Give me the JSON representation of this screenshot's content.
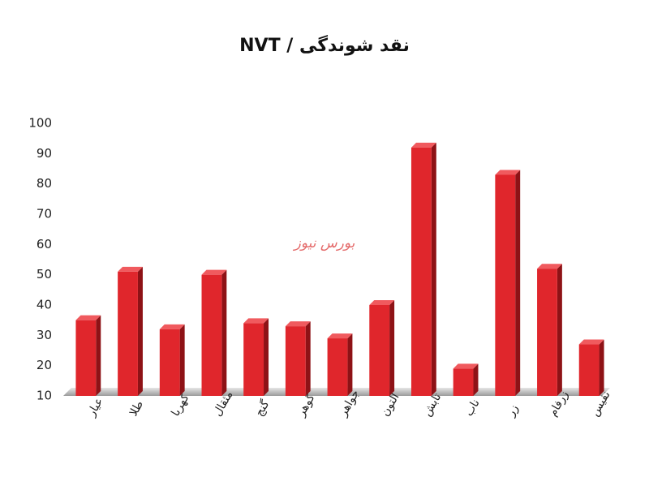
{
  "chart_data": {
    "type": "bar",
    "title": "نقد شوندگی / NVT",
    "annotation": "بورس نیوز",
    "categories": [
      "عیار",
      "طلا",
      "کهربا",
      "مثقال",
      "گنج",
      "گوهر",
      "جواهر",
      "آلتون",
      "تابش",
      "ناب",
      "زر",
      "زرفام",
      "نفیس"
    ],
    "values": [
      35,
      51,
      32,
      50,
      34,
      33,
      29,
      40,
      92,
      19,
      83,
      52,
      27
    ],
    "color": "#e0262c",
    "ylim": [
      10,
      100
    ],
    "yticks": [
      10,
      20,
      30,
      40,
      50,
      60,
      70,
      80,
      90,
      100
    ],
    "grid": false
  }
}
